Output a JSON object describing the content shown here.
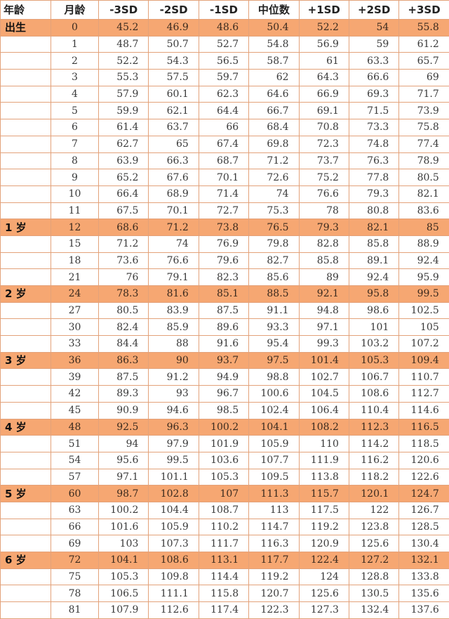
{
  "columns": {
    "year": "年龄",
    "month": "月龄",
    "m3sd": "-3SD",
    "m2sd": "-2SD",
    "m1sd": "-1SD",
    "median": "中位数",
    "p1sd": "+1SD",
    "p2sd": "+2SD",
    "p3sd": "+3SD"
  },
  "rows": [
    {
      "year": "出生",
      "month": "0",
      "values": [
        "45.2",
        "46.9",
        "48.6",
        "50.4",
        "52.2",
        "54",
        "55.8"
      ]
    },
    {
      "year": "",
      "month": "1",
      "values": [
        "48.7",
        "50.7",
        "52.7",
        "54.8",
        "56.9",
        "59",
        "61.2"
      ]
    },
    {
      "year": "",
      "month": "2",
      "values": [
        "52.2",
        "54.3",
        "56.5",
        "58.7",
        "61",
        "63.3",
        "65.7"
      ]
    },
    {
      "year": "",
      "month": "3",
      "values": [
        "55.3",
        "57.5",
        "59.7",
        "62",
        "64.3",
        "66.6",
        "69"
      ]
    },
    {
      "year": "",
      "month": "4",
      "values": [
        "57.9",
        "60.1",
        "62.3",
        "64.6",
        "66.9",
        "69.3",
        "71.7"
      ]
    },
    {
      "year": "",
      "month": "5",
      "values": [
        "59.9",
        "62.1",
        "64.4",
        "66.7",
        "69.1",
        "71.5",
        "73.9"
      ]
    },
    {
      "year": "",
      "month": "6",
      "values": [
        "61.4",
        "63.7",
        "66",
        "68.4",
        "70.8",
        "73.3",
        "75.8"
      ]
    },
    {
      "year": "",
      "month": "7",
      "values": [
        "62.7",
        "65",
        "67.4",
        "69.8",
        "72.3",
        "74.8",
        "77.4"
      ]
    },
    {
      "year": "",
      "month": "8",
      "values": [
        "63.9",
        "66.3",
        "68.7",
        "71.2",
        "73.7",
        "76.3",
        "78.9"
      ]
    },
    {
      "year": "",
      "month": "9",
      "values": [
        "65.2",
        "67.6",
        "70.1",
        "72.6",
        "75.2",
        "77.8",
        "80.5"
      ]
    },
    {
      "year": "",
      "month": "10",
      "values": [
        "66.4",
        "68.9",
        "71.4",
        "74",
        "76.6",
        "79.3",
        "82.1"
      ]
    },
    {
      "year": "",
      "month": "11",
      "values": [
        "67.5",
        "70.1",
        "72.7",
        "75.3",
        "78",
        "80.8",
        "83.6"
      ]
    },
    {
      "year": "1 岁",
      "month": "12",
      "values": [
        "68.6",
        "71.2",
        "73.8",
        "76.5",
        "79.3",
        "82.1",
        "85"
      ]
    },
    {
      "year": "",
      "month": "15",
      "values": [
        "71.2",
        "74",
        "76.9",
        "79.8",
        "82.8",
        "85.8",
        "88.9"
      ]
    },
    {
      "year": "",
      "month": "18",
      "values": [
        "73.6",
        "76.6",
        "79.6",
        "82.7",
        "85.8",
        "89.1",
        "92.4"
      ]
    },
    {
      "year": "",
      "month": "21",
      "values": [
        "76",
        "79.1",
        "82.3",
        "85.6",
        "89",
        "92.4",
        "95.9"
      ]
    },
    {
      "year": "2 岁",
      "month": "24",
      "values": [
        "78.3",
        "81.6",
        "85.1",
        "88.5",
        "92.1",
        "95.8",
        "99.5"
      ]
    },
    {
      "year": "",
      "month": "27",
      "values": [
        "80.5",
        "83.9",
        "87.5",
        "91.1",
        "94.8",
        "98.6",
        "102.5"
      ]
    },
    {
      "year": "",
      "month": "30",
      "values": [
        "82.4",
        "85.9",
        "89.6",
        "93.3",
        "97.1",
        "101",
        "105"
      ]
    },
    {
      "year": "",
      "month": "33",
      "values": [
        "84.4",
        "88",
        "91.6",
        "95.4",
        "99.3",
        "103.2",
        "107.2"
      ]
    },
    {
      "year": "3 岁",
      "month": "36",
      "values": [
        "86.3",
        "90",
        "93.7",
        "97.5",
        "101.4",
        "105.3",
        "109.4"
      ]
    },
    {
      "year": "",
      "month": "39",
      "values": [
        "87.5",
        "91.2",
        "94.9",
        "98.8",
        "102.7",
        "106.7",
        "110.7"
      ]
    },
    {
      "year": "",
      "month": "42",
      "values": [
        "89.3",
        "93",
        "96.7",
        "100.6",
        "104.5",
        "108.6",
        "112.7"
      ]
    },
    {
      "year": "",
      "month": "45",
      "values": [
        "90.9",
        "94.6",
        "98.5",
        "102.4",
        "106.4",
        "110.4",
        "114.6"
      ]
    },
    {
      "year": "4 岁",
      "month": "48",
      "values": [
        "92.5",
        "96.3",
        "100.2",
        "104.1",
        "108.2",
        "112.3",
        "116.5"
      ]
    },
    {
      "year": "",
      "month": "51",
      "values": [
        "94",
        "97.9",
        "101.9",
        "105.9",
        "110",
        "114.2",
        "118.5"
      ]
    },
    {
      "year": "",
      "month": "54",
      "values": [
        "95.6",
        "99.5",
        "103.6",
        "107.7",
        "111.9",
        "116.2",
        "120.6"
      ]
    },
    {
      "year": "",
      "month": "57",
      "values": [
        "97.1",
        "101.1",
        "105.3",
        "109.5",
        "113.8",
        "118.2",
        "122.6"
      ]
    },
    {
      "year": "5 岁",
      "month": "60",
      "values": [
        "98.7",
        "102.8",
        "107",
        "111.3",
        "115.7",
        "120.1",
        "124.7"
      ]
    },
    {
      "year": "",
      "month": "63",
      "values": [
        "100.2",
        "104.4",
        "108.7",
        "113",
        "117.5",
        "122",
        "126.7"
      ]
    },
    {
      "year": "",
      "month": "66",
      "values": [
        "101.6",
        "105.9",
        "110.2",
        "114.7",
        "119.2",
        "123.8",
        "128.5"
      ]
    },
    {
      "year": "",
      "month": "69",
      "values": [
        "103",
        "107.3",
        "111.7",
        "116.3",
        "120.9",
        "125.6",
        "130.4"
      ]
    },
    {
      "year": "6 岁",
      "month": "72",
      "values": [
        "104.1",
        "108.6",
        "113.1",
        "117.7",
        "122.4",
        "127.2",
        "132.1"
      ]
    },
    {
      "year": "",
      "month": "75",
      "values": [
        "105.3",
        "109.8",
        "114.4",
        "119.2",
        "124",
        "128.8",
        "133.8"
      ]
    },
    {
      "year": "",
      "month": "78",
      "values": [
        "106.5",
        "111.1",
        "115.8",
        "120.7",
        "125.6",
        "130.5",
        "135.6"
      ]
    },
    {
      "year": "",
      "month": "81",
      "values": [
        "107.9",
        "112.6",
        "117.4",
        "122.3",
        "127.3",
        "132.4",
        "137.6"
      ]
    }
  ],
  "highlight_color": "#f6a772",
  "border_color": "#e3a27a"
}
